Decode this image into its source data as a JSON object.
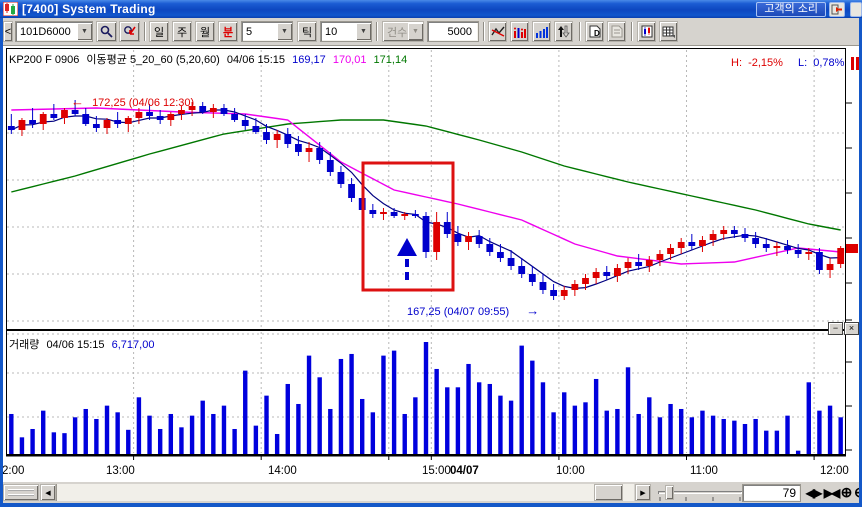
{
  "window": {
    "title": "[7400] System Trading",
    "customer_voice_button": "고객의 소리"
  },
  "toolbar": {
    "collapse_button": "<",
    "symbol_combo": "101D6000",
    "period": {
      "day": "일",
      "week": "주",
      "month": "월",
      "minute": "분",
      "minute_interval": "5",
      "tick": "틱",
      "tick_interval": "10"
    },
    "count_combo": "건수",
    "count_value": "5000",
    "combo_arrow": "▼"
  },
  "price_pane": {
    "header": {
      "symbol": "KP200 F 0906",
      "ma_label": "이동평균 5_20_60 (5,20,60)",
      "datetime": "04/06 15:15",
      "ma5_value": "169,17",
      "ma20_value": "170,01",
      "ma60_value": "171,14"
    },
    "stats": {
      "h_label": "H:",
      "h_value": "-2,15%",
      "l_label": "L:",
      "l_value": "0,78%"
    },
    "annotations": {
      "high_arrow": "←",
      "high_text": "172,25 (04/06 12:30)",
      "low_text": "167,25 (04/07 09:55)",
      "low_arrow": "→"
    }
  },
  "volume_pane": {
    "title": "거래량",
    "datetime": "04/06 15:15",
    "value": "6,717,00",
    "minimize_glyph": "−",
    "close_glyph": "×"
  },
  "bottom_bar": {
    "left_arrow": "◀",
    "right_arrow": "▶",
    "visible_bars_input": "79",
    "expand_icon": "◀▶",
    "shrink_icon": "▶◀",
    "zoom_in_icon": "⊕",
    "zoom_out_icon": "⊖"
  },
  "colors": {
    "up": "#dd0000",
    "down": "#0000cc",
    "ma5": "#000080",
    "ma20": "#ee00ee",
    "ma60": "#007700",
    "volume": "#0000dd",
    "grid": "#b8b8b8",
    "annotation_red": "#dd0000",
    "annotation_blue": "#0000cc"
  },
  "chart_data": {
    "type": "candlestick",
    "instrument": "KP200 F 0906",
    "interval": "5-minute",
    "ma_periods": [
      5,
      20,
      60
    ],
    "x_labels": [
      "2:00",
      "13:00",
      "14:00",
      "15:00",
      "04/07",
      "10:00",
      "11:00",
      "12:00"
    ],
    "bold_label_index": 4,
    "ylim": [
      166.6,
      172.6
    ],
    "grid": true,
    "session_high": 172.25,
    "session_high_time": "04/06 12:30",
    "session_low": 167.25,
    "session_low_time": "04/07 09:55",
    "last_price": 168.55,
    "volume_at_cursor": 6717,
    "candles": [
      [
        171.6,
        171.9,
        171.4,
        171.5
      ],
      [
        171.5,
        171.8,
        171.35,
        171.75
      ],
      [
        171.75,
        172.05,
        171.55,
        171.65
      ],
      [
        171.65,
        171.95,
        171.5,
        171.9
      ],
      [
        171.9,
        172.15,
        171.75,
        171.8
      ],
      [
        171.8,
        172.05,
        171.65,
        172.0
      ],
      [
        172.0,
        172.25,
        171.85,
        171.9
      ],
      [
        171.9,
        172.05,
        171.6,
        171.65
      ],
      [
        171.65,
        171.85,
        171.45,
        171.55
      ],
      [
        171.55,
        171.8,
        171.4,
        171.75
      ],
      [
        171.75,
        171.95,
        171.55,
        171.65
      ],
      [
        171.65,
        171.85,
        171.45,
        171.8
      ],
      [
        171.8,
        172.05,
        171.65,
        171.95
      ],
      [
        171.95,
        172.15,
        171.75,
        171.85
      ],
      [
        171.85,
        172.0,
        171.65,
        171.75
      ],
      [
        171.75,
        171.95,
        171.6,
        171.9
      ],
      [
        171.9,
        172.1,
        171.75,
        172.0
      ],
      [
        172.0,
        172.2,
        171.85,
        172.1
      ],
      [
        172.1,
        172.2,
        171.9,
        171.95
      ],
      [
        171.95,
        172.15,
        171.8,
        172.05
      ],
      [
        172.05,
        172.15,
        171.85,
        171.9
      ],
      [
        171.9,
        172.05,
        171.7,
        171.75
      ],
      [
        171.75,
        171.9,
        171.5,
        171.6
      ],
      [
        171.6,
        171.8,
        171.4,
        171.45
      ],
      [
        171.45,
        171.65,
        171.15,
        171.25
      ],
      [
        171.25,
        171.5,
        171.05,
        171.4
      ],
      [
        171.4,
        171.55,
        171.05,
        171.15
      ],
      [
        171.15,
        171.35,
        170.85,
        170.95
      ],
      [
        170.95,
        171.2,
        170.7,
        171.05
      ],
      [
        171.05,
        171.2,
        170.65,
        170.75
      ],
      [
        170.75,
        170.95,
        170.35,
        170.45
      ],
      [
        170.45,
        170.6,
        170.05,
        170.15
      ],
      [
        170.15,
        170.3,
        169.7,
        169.8
      ],
      [
        169.8,
        169.95,
        169.45,
        169.5
      ],
      [
        169.5,
        169.65,
        169.3,
        169.4
      ],
      [
        169.4,
        169.55,
        169.25,
        169.45
      ],
      [
        169.45,
        169.55,
        169.3,
        169.35
      ],
      [
        169.35,
        169.45,
        169.25,
        169.4
      ],
      [
        169.4,
        169.5,
        169.3,
        169.35
      ],
      [
        169.35,
        169.45,
        168.3,
        168.45
      ],
      [
        168.45,
        169.45,
        168.25,
        169.2
      ],
      [
        169.2,
        169.45,
        168.8,
        168.9
      ],
      [
        168.9,
        169.1,
        168.6,
        168.7
      ],
      [
        168.7,
        168.95,
        168.5,
        168.85
      ],
      [
        168.85,
        169.0,
        168.55,
        168.65
      ],
      [
        168.65,
        168.8,
        168.35,
        168.45
      ],
      [
        168.45,
        168.65,
        168.2,
        168.3
      ],
      [
        168.3,
        168.5,
        168.0,
        168.1
      ],
      [
        168.1,
        168.3,
        167.8,
        167.9
      ],
      [
        167.9,
        168.1,
        167.6,
        167.7
      ],
      [
        167.7,
        167.9,
        167.4,
        167.5
      ],
      [
        167.5,
        167.65,
        167.25,
        167.35
      ],
      [
        167.35,
        167.6,
        167.25,
        167.5
      ],
      [
        167.5,
        167.75,
        167.35,
        167.65
      ],
      [
        167.65,
        167.9,
        167.5,
        167.8
      ],
      [
        167.8,
        168.05,
        167.65,
        167.95
      ],
      [
        167.95,
        168.1,
        167.75,
        167.85
      ],
      [
        167.85,
        168.15,
        167.7,
        168.05
      ],
      [
        168.05,
        168.3,
        167.9,
        168.2
      ],
      [
        168.2,
        168.4,
        168.0,
        168.1
      ],
      [
        168.1,
        168.35,
        167.95,
        168.25
      ],
      [
        168.25,
        168.5,
        168.1,
        168.4
      ],
      [
        168.4,
        168.65,
        168.25,
        168.55
      ],
      [
        168.55,
        168.8,
        168.4,
        168.7
      ],
      [
        168.7,
        168.9,
        168.5,
        168.6
      ],
      [
        168.6,
        168.85,
        168.45,
        168.75
      ],
      [
        168.75,
        169.0,
        168.6,
        168.9
      ],
      [
        168.9,
        169.1,
        168.75,
        169.0
      ],
      [
        169.0,
        169.1,
        168.8,
        168.9
      ],
      [
        168.9,
        169.05,
        168.7,
        168.8
      ],
      [
        168.8,
        168.95,
        168.55,
        168.65
      ],
      [
        168.65,
        168.8,
        168.45,
        168.55
      ],
      [
        168.55,
        168.7,
        168.35,
        168.6
      ],
      [
        168.6,
        168.75,
        168.4,
        168.5
      ],
      [
        168.5,
        168.65,
        168.3,
        168.4
      ],
      [
        168.4,
        168.55,
        168.25,
        168.45
      ],
      [
        168.45,
        168.55,
        167.9,
        168.0
      ],
      [
        168.0,
        168.3,
        167.8,
        168.15
      ],
      [
        168.15,
        168.6,
        168.05,
        168.55
      ]
    ],
    "volumes": [
      2400,
      1000,
      1500,
      2600,
      1300,
      1250,
      2200,
      2700,
      2100,
      2900,
      2500,
      1450,
      3400,
      2300,
      1500,
      2400,
      1600,
      2300,
      3200,
      2400,
      2900,
      1500,
      5000,
      1700,
      3500,
      1200,
      4200,
      3000,
      5900,
      4600,
      2700,
      5700,
      6000,
      3300,
      2500,
      5900,
      6200,
      2400,
      3400,
      6717,
      5100,
      4000,
      4000,
      5400,
      4300,
      4200,
      3500,
      3200,
      6500,
      5600,
      4300,
      2500,
      3700,
      2900,
      3100,
      4500,
      2600,
      2700,
      5200,
      2400,
      3400,
      2200,
      3000,
      2700,
      2200,
      2600,
      2300,
      2100,
      2000,
      1800,
      2100,
      1400,
      1400,
      2300,
      200,
      4300,
      2600,
      2900,
      2200
    ],
    "ma20_points": [
      [
        0,
        172.0
      ],
      [
        8,
        172.05
      ],
      [
        16,
        171.95
      ],
      [
        22,
        171.9
      ],
      [
        26,
        171.75
      ],
      [
        31,
        170.7
      ],
      [
        36,
        170.0
      ],
      [
        42,
        169.65
      ],
      [
        48,
        169.25
      ],
      [
        53,
        168.65
      ],
      [
        57,
        168.35
      ],
      [
        63,
        168.15
      ],
      [
        68,
        168.2
      ],
      [
        74,
        168.55
      ],
      [
        78,
        168.45
      ]
    ],
    "ma60_points": [
      [
        0,
        169.95
      ],
      [
        6,
        170.35
      ],
      [
        13,
        170.9
      ],
      [
        20,
        171.4
      ],
      [
        26,
        171.65
      ],
      [
        31,
        171.75
      ],
      [
        35,
        171.75
      ],
      [
        39,
        171.6
      ],
      [
        44,
        171.25
      ],
      [
        48,
        170.95
      ],
      [
        52,
        170.6
      ],
      [
        58,
        170.2
      ],
      [
        64,
        169.85
      ],
      [
        70,
        169.5
      ],
      [
        75,
        169.15
      ],
      [
        78,
        169.0
      ]
    ]
  }
}
